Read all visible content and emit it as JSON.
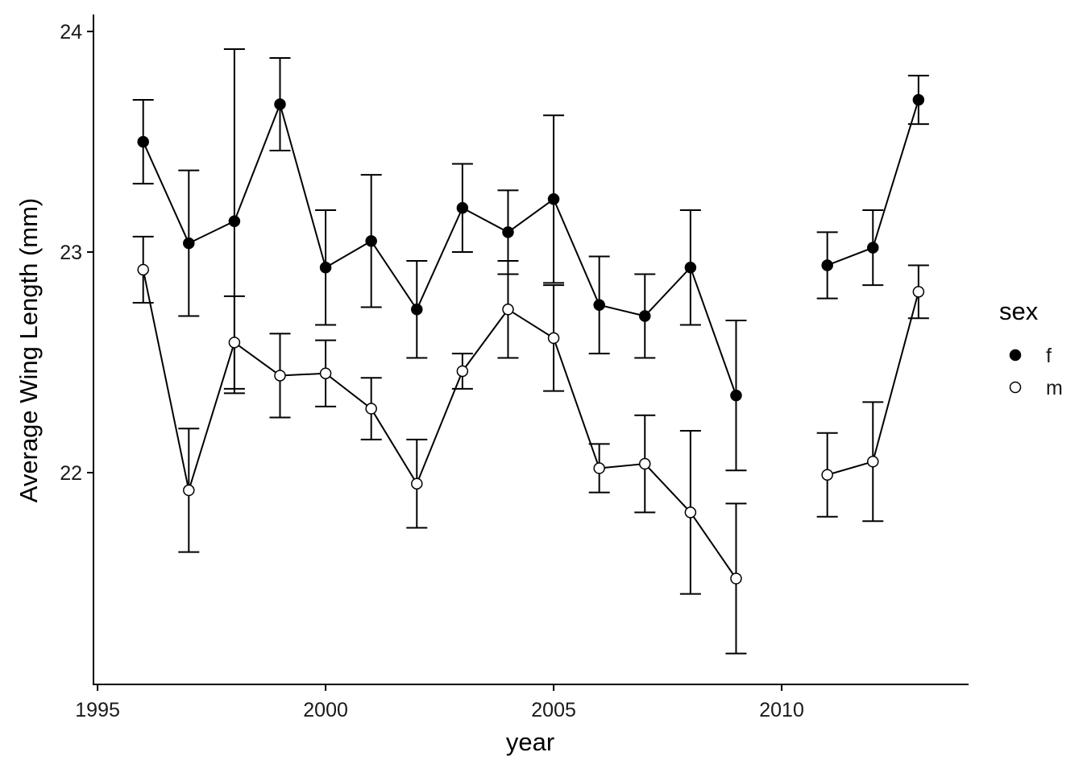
{
  "chart_data": {
    "type": "line",
    "x_label": "year",
    "y_label": "Average Wing Length (mm)",
    "x": [
      1996,
      1997,
      1998,
      1999,
      2000,
      2001,
      2002,
      2003,
      2004,
      2005,
      2006,
      2007,
      2008,
      2009,
      2010,
      2011,
      2012,
      2013
    ],
    "series": [
      {
        "name": "f",
        "color": "#000000",
        "values": [
          23.5,
          23.04,
          23.14,
          23.67,
          22.93,
          23.05,
          22.74,
          23.2,
          23.09,
          23.24,
          22.76,
          22.71,
          22.93,
          22.35,
          null,
          22.94,
          23.02,
          23.69
        ],
        "errors": [
          0.19,
          0.33,
          0.78,
          0.21,
          0.26,
          0.3,
          0.22,
          0.2,
          0.19,
          0.38,
          0.22,
          0.19,
          0.26,
          0.34,
          null,
          0.15,
          0.17,
          0.11
        ]
      },
      {
        "name": "m",
        "color": "#ffffff",
        "values": [
          22.92,
          21.92,
          22.59,
          22.44,
          22.45,
          22.29,
          21.95,
          22.46,
          22.74,
          22.61,
          22.02,
          22.04,
          21.82,
          21.52,
          null,
          21.99,
          22.05,
          22.82
        ],
        "errors": [
          0.15,
          0.28,
          0.21,
          0.19,
          0.15,
          0.14,
          0.2,
          0.08,
          0.22,
          0.24,
          0.11,
          0.22,
          0.37,
          0.34,
          null,
          0.19,
          0.27,
          0.12
        ]
      }
    ],
    "legend_title": "sex",
    "legend_position": "right",
    "xlim": [
      1994.91,
      2014.08
    ],
    "xticks": [
      1995,
      2000,
      2005,
      2010
    ],
    "ylim": [
      21.04,
      24.077
    ],
    "yticks": [
      22,
      23,
      24
    ],
    "grid": false
  }
}
